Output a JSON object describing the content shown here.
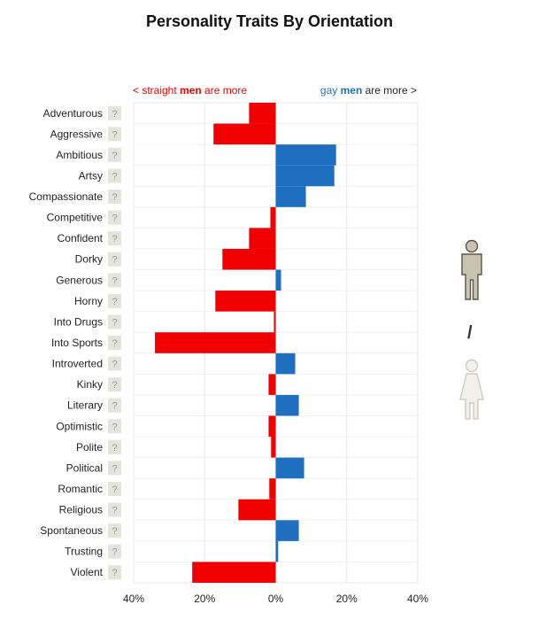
{
  "chart_data": {
    "type": "bar",
    "orientation": "horizontal",
    "title": "Personality Traits By Orientation",
    "left_header": {
      "pre": "< straight ",
      "bold": "men",
      "post": " are more"
    },
    "right_header": {
      "pre": "gay ",
      "bold": "men",
      "post": " are more >"
    },
    "categories": [
      "Adventurous",
      "Aggressive",
      "Ambitious",
      "Artsy",
      "Compassionate",
      "Competitive",
      "Confident",
      "Dorky",
      "Generous",
      "Horny",
      "Into Drugs",
      "Into Sports",
      "Introverted",
      "Kinky",
      "Literary",
      "Optimistic",
      "Polite",
      "Political",
      "Romantic",
      "Religious",
      "Spontaneous",
      "Trusting",
      "Violent"
    ],
    "values": [
      -7.5,
      -17.5,
      17,
      16.5,
      8.5,
      -1.5,
      -7.5,
      -15,
      1.5,
      -17,
      -0.5,
      -34,
      5.5,
      -2,
      6.5,
      -2,
      -1.3,
      8,
      -1.8,
      -10.5,
      6.5,
      0.7,
      -23.5
    ],
    "xlim": [
      -40,
      40
    ],
    "xticks": [
      -40,
      -20,
      0,
      20,
      40
    ],
    "xtick_labels": [
      "40%",
      "20%",
      "0%",
      "20%",
      "40%"
    ],
    "help_marker": "?",
    "colors": {
      "negative": "#f00000",
      "positive": "#1f6fc0",
      "grid": "#e8e8e8",
      "help_bg": "#e4e4dc",
      "help_text": "#999999"
    },
    "grid": true
  },
  "toggle": {
    "separator": "/",
    "icons": [
      "male-icon",
      "female-icon"
    ]
  }
}
